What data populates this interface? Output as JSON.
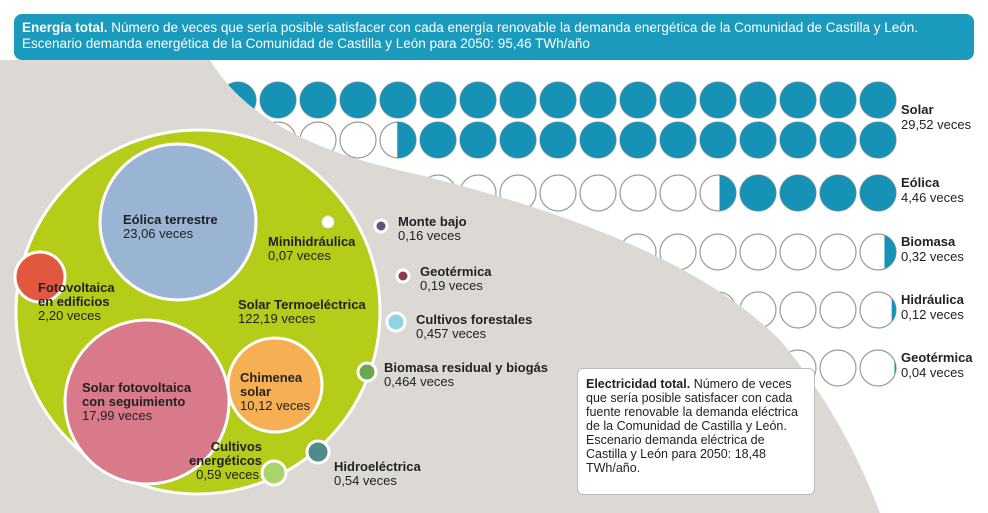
{
  "banner": {
    "title_bold": "Energía total.",
    "title_rest": "Número de veces que sería posible satisfacer con cada energía renovable la demanda energética de la Comunidad de Castilla y León.",
    "line2": "Escenario demanda energética de la Comunidad de Castilla y León para 2050: 95,46 TWh/año"
  },
  "pictogram": [
    {
      "label": "Solar",
      "value": "29,52 veces"
    },
    {
      "label": "Eólica",
      "value": "4,46 veces"
    },
    {
      "label": "Biomasa",
      "value": "0,32 veces"
    },
    {
      "label": "Hidráulica",
      "value": "0,12 veces"
    },
    {
      "label": "Geotérmica",
      "value": "0,04 veces"
    }
  ],
  "bubbles": [
    {
      "label": "Solar Termoeléctrica",
      "value": "122,19 veces"
    },
    {
      "label": "Eólica terrestre",
      "value": "23,06 veces"
    },
    {
      "label": "Solar fotovoltaica con seguimiento",
      "value": "17,99 veces"
    },
    {
      "label": "Chimenea solar",
      "value": "10,12 veces"
    },
    {
      "label": "Fotovoltaica en edificios",
      "value": "2,20 veces"
    },
    {
      "label": "Minihidráulica",
      "value": "0,07 veces"
    },
    {
      "label": "Cultivos energéticos",
      "value": "0,59 veces"
    },
    {
      "label": "Hidroeléctrica",
      "value": "0,54 veces"
    },
    {
      "label": "Monte bajo",
      "value": "0,16 veces"
    },
    {
      "label": "Geotérmica",
      "value": "0,19 veces"
    },
    {
      "label": "Cultivos forestales",
      "value": "0,457 veces"
    },
    {
      "label": "Biomasa residual y biogás",
      "value": "0,464 veces"
    }
  ],
  "note": {
    "bold": "Electricidad total.",
    "text": "Número de veces que sería posible satisfacer con cada fuente renovable la demanda eléctrica de la Comunidad de Castilla y León. Escenario demanda eléctrica de Castilla y León para 2050: 18,48 TWh/año."
  }
}
